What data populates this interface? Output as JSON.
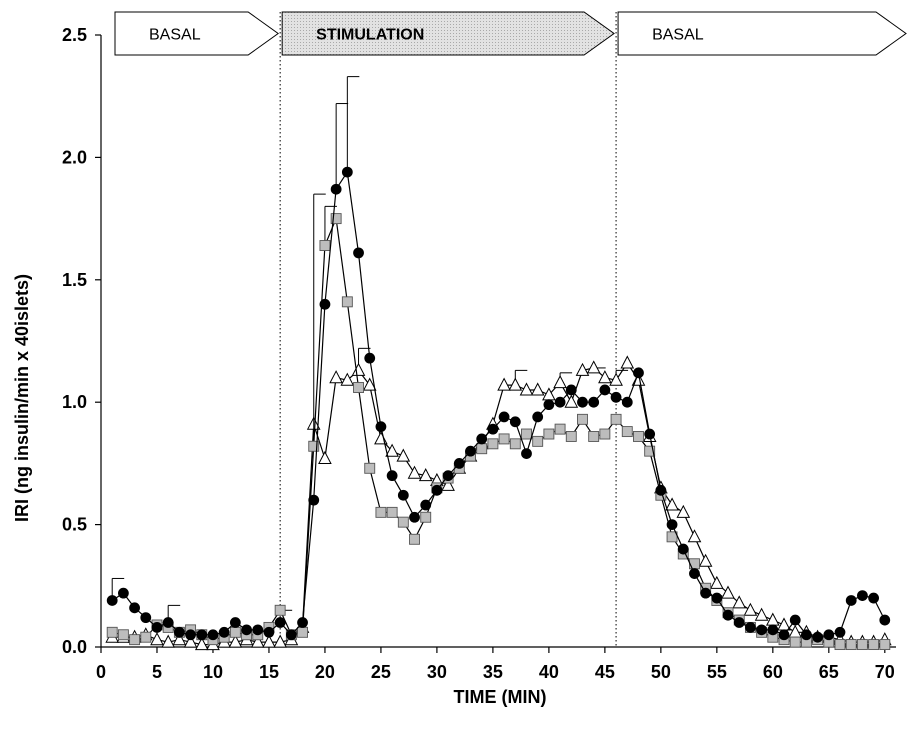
{
  "chart_data": {
    "type": "line",
    "xlabel": "TIME (MIN)",
    "ylabel": "IRI (ng insulin/min x 40islets)",
    "xlim": [
      0,
      71
    ],
    "ylim": [
      0,
      2.5
    ],
    "x_ticks": [
      "0",
      "5",
      "10",
      "15",
      "20",
      "25",
      "30",
      "35",
      "40",
      "45",
      "50",
      "55",
      "60",
      "65",
      "70"
    ],
    "y_ticks": [
      "0.0",
      "0.5",
      "1.0",
      "1.5",
      "2.0",
      "2.5"
    ],
    "phases": [
      {
        "label": "BASAL",
        "start": 0,
        "end": 16,
        "style": "white"
      },
      {
        "label": "STIMULATION",
        "start": 16,
        "end": 46,
        "style": "gray"
      },
      {
        "label": "BASAL",
        "start": 46,
        "end": 71,
        "style": "white"
      }
    ],
    "phase_dividers": [
      16,
      46
    ],
    "series": [
      {
        "marker": "circle-black",
        "x": [
          1,
          2,
          3,
          4,
          5,
          6,
          7,
          8,
          9,
          10,
          11,
          12,
          13,
          14,
          15,
          16,
          17,
          18,
          19,
          20,
          21,
          22,
          23,
          24,
          25,
          26,
          27,
          28,
          29,
          30,
          31,
          32,
          33,
          34,
          35,
          36,
          37,
          38,
          39,
          40,
          41,
          42,
          43,
          44,
          45,
          46,
          47,
          48,
          49,
          50,
          51,
          52,
          53,
          54,
          55,
          56,
          57,
          58,
          59,
          60,
          61,
          62,
          63,
          64,
          65,
          66,
          67,
          68,
          69,
          70
        ],
        "y": [
          0.19,
          0.22,
          0.16,
          0.12,
          0.08,
          0.1,
          0.06,
          0.05,
          0.05,
          0.05,
          0.06,
          0.1,
          0.07,
          0.07,
          0.06,
          0.1,
          0.05,
          0.1,
          0.6,
          1.4,
          1.87,
          1.94,
          1.61,
          1.18,
          0.9,
          0.7,
          0.62,
          0.53,
          0.58,
          0.64,
          0.7,
          0.75,
          0.8,
          0.85,
          0.89,
          0.94,
          0.92,
          0.79,
          0.94,
          0.99,
          1.0,
          1.05,
          1.0,
          1.0,
          1.05,
          1.02,
          1.0,
          1.12,
          0.87,
          0.64,
          0.5,
          0.4,
          0.3,
          0.22,
          0.2,
          0.13,
          0.1,
          0.08,
          0.07,
          0.07,
          0.05,
          0.11,
          0.05,
          0.04,
          0.05,
          0.06,
          0.19,
          0.21,
          0.2,
          0.11
        ],
        "error_bars": [
          [
            1,
            0.28
          ],
          [
            6,
            0.17
          ],
          [
            21,
            2.22
          ],
          [
            22,
            2.33
          ]
        ]
      },
      {
        "marker": "square-gray",
        "x": [
          1,
          2,
          3,
          4,
          5,
          6,
          7,
          8,
          9,
          10,
          11,
          12,
          13,
          14,
          15,
          16,
          17,
          18,
          19,
          20,
          21,
          22,
          23,
          24,
          25,
          26,
          27,
          28,
          29,
          30,
          31,
          32,
          33,
          34,
          35,
          36,
          37,
          38,
          39,
          40,
          41,
          42,
          43,
          44,
          45,
          46,
          47,
          48,
          49,
          50,
          51,
          52,
          53,
          54,
          55,
          56,
          57,
          58,
          59,
          60,
          61,
          62,
          63,
          64,
          65,
          66,
          67,
          68,
          69,
          70
        ],
        "y": [
          0.06,
          0.05,
          0.03,
          0.04,
          0.09,
          0.08,
          0.06,
          0.07,
          0.05,
          0.03,
          0.04,
          0.06,
          0.05,
          0.05,
          0.08,
          0.15,
          0.05,
          0.06,
          0.82,
          1.64,
          1.75,
          1.41,
          1.06,
          0.73,
          0.55,
          0.55,
          0.51,
          0.44,
          0.53,
          0.65,
          0.69,
          0.73,
          0.78,
          0.81,
          0.83,
          0.85,
          0.83,
          0.87,
          0.84,
          0.87,
          0.89,
          0.86,
          0.93,
          0.86,
          0.87,
          0.93,
          0.88,
          0.86,
          0.8,
          0.62,
          0.45,
          0.38,
          0.34,
          0.24,
          0.19,
          0.14,
          0.11,
          0.08,
          0.06,
          0.04,
          0.03,
          0.02,
          0.02,
          0.03,
          0.02,
          0.01,
          0.01,
          0.01,
          0.01,
          0.01
        ],
        "error_bars": [
          [
            16,
            0.15
          ],
          [
            19,
            1.85
          ],
          [
            20,
            1.8
          ]
        ]
      },
      {
        "marker": "triangle-white",
        "x": [
          1,
          2,
          3,
          4,
          5,
          6,
          7,
          8,
          9,
          10,
          11,
          12,
          13,
          14,
          15,
          16,
          17,
          18,
          19,
          20,
          21,
          22,
          23,
          24,
          25,
          26,
          27,
          28,
          29,
          30,
          31,
          32,
          33,
          34,
          35,
          36,
          37,
          38,
          39,
          40,
          41,
          42,
          43,
          44,
          45,
          46,
          47,
          48,
          49,
          50,
          51,
          52,
          53,
          54,
          55,
          56,
          57,
          58,
          59,
          60,
          61,
          62,
          63,
          64,
          65,
          66,
          67,
          68,
          69,
          70
        ],
        "y": [
          0.04,
          0.04,
          0.04,
          0.05,
          0.03,
          0.02,
          0.03,
          0.02,
          0.01,
          0.01,
          0.02,
          0.02,
          0.03,
          0.02,
          0.02,
          0.02,
          0.03,
          0.08,
          0.91,
          0.77,
          1.1,
          1.09,
          1.13,
          1.07,
          0.85,
          0.8,
          0.78,
          0.71,
          0.7,
          0.68,
          0.66,
          0.73,
          0.78,
          0.83,
          0.91,
          1.07,
          1.07,
          1.05,
          1.05,
          1.03,
          1.08,
          1.0,
          1.13,
          1.14,
          1.1,
          1.09,
          1.16,
          1.09,
          0.86,
          0.65,
          0.58,
          0.55,
          0.45,
          0.35,
          0.26,
          0.22,
          0.18,
          0.15,
          0.13,
          0.11,
          0.09,
          0.06,
          0.06,
          0.04,
          0.04,
          0.03,
          0.02,
          0.02,
          0.02,
          0.03
        ],
        "error_bars": [
          [
            23,
            1.22
          ],
          [
            37,
            1.13
          ],
          [
            41,
            1.12
          ],
          [
            44,
            1.14
          ],
          [
            46,
            1.13
          ]
        ]
      }
    ]
  }
}
